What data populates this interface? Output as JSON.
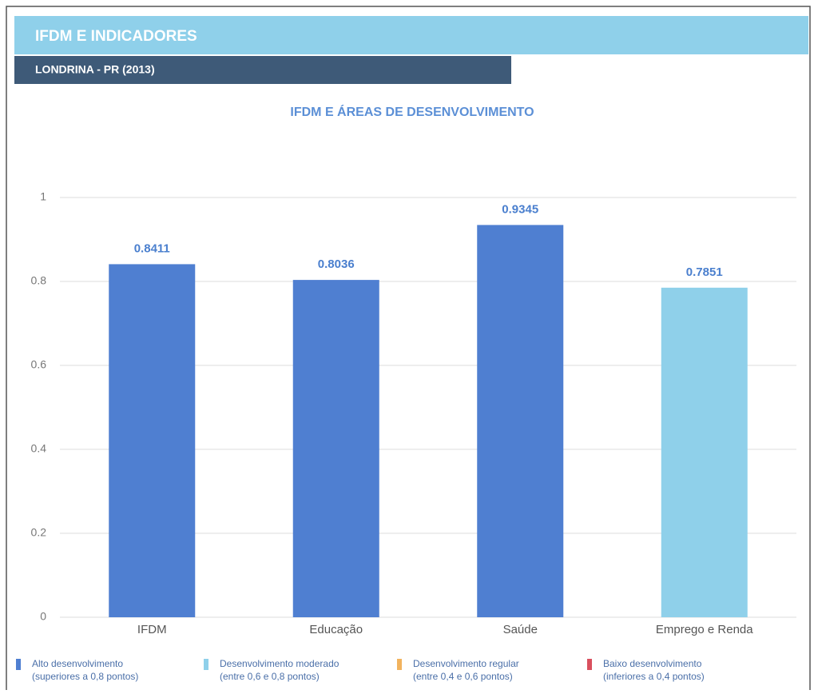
{
  "header": {
    "title": "IFDM E INDICADORES",
    "subtitle": "LONDRINA - PR (2013)"
  },
  "chart_data": {
    "type": "bar",
    "title": "IFDM E ÁREAS DE DESENVOLVIMENTO",
    "categories": [
      "IFDM",
      "Educação",
      "Saúde",
      "Emprego e Renda"
    ],
    "values": [
      0.8411,
      0.8036,
      0.9345,
      0.7851
    ],
    "colors": [
      "#4f7fd1",
      "#4f7fd1",
      "#4f7fd1",
      "#8fd0ea"
    ],
    "ylim": [
      0,
      1
    ],
    "yticks": [
      0,
      0.2,
      0.4,
      0.6,
      0.8,
      1
    ],
    "grid": true,
    "legend": [
      {
        "name": "Alto desenvolvimento",
        "note": "(superiores a 0,8 pontos)",
        "color": "#4f7fd1"
      },
      {
        "name": "Desenvolvimento moderado",
        "note": "(entre 0,6 e 0,8 pontos)",
        "color": "#8fd0ea"
      },
      {
        "name": "Desenvolvimento regular",
        "note": "(entre 0,4 e 0,6 pontos)",
        "color": "#f2b35e"
      },
      {
        "name": "Baixo desenvolvimento",
        "note": "(inferiores a 0,4 pontos)",
        "color": "#d9505e"
      }
    ]
  }
}
